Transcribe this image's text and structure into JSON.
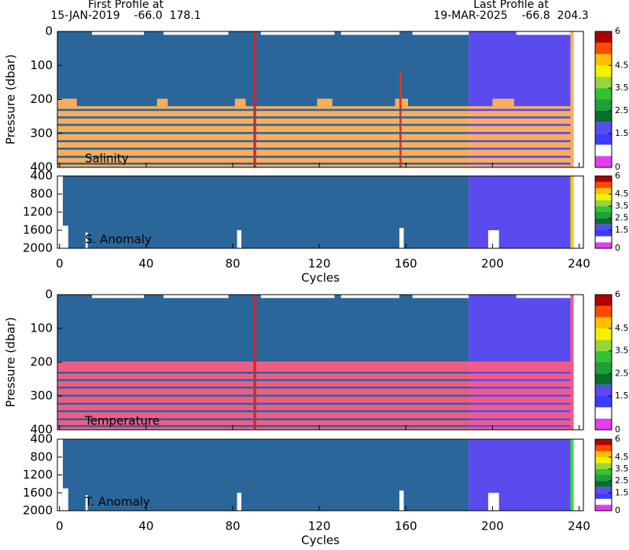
{
  "header": {
    "first_title": "First Profile at",
    "first_info": "15-JAN-2019    -66.0  178.1",
    "last_title": "Last Profile at",
    "last_info": "19-MAR-2025    -66.8  204.3"
  },
  "colorbar": {
    "levels": [
      0,
      0.5,
      1,
      1.5,
      2,
      2.5,
      3,
      3.5,
      4,
      4.5,
      5,
      5.5,
      6
    ],
    "colors": [
      "#e23ef0",
      "#ffffff",
      "#3c3cff",
      "#5a4bef",
      "#0b6e2e",
      "#1f9e3a",
      "#34c234",
      "#9ad53a",
      "#f2f200",
      "#ffc000",
      "#ff4a00",
      "#b00000"
    ],
    "ticks": [
      0,
      1.5,
      2.5,
      3.5,
      4.5,
      6
    ]
  },
  "chart_data": [
    {
      "type": "heatmap",
      "ylabel": "Pressure (dbar)",
      "label": "Salinity",
      "xlim": [
        -1,
        242
      ],
      "ylim": [
        0,
        400
      ],
      "xticks": [
        0,
        40,
        80,
        120,
        160,
        200,
        240
      ],
      "xticklabels": false,
      "yticks": [
        0,
        100,
        200,
        300,
        400
      ],
      "layers": [
        {
          "x": [
            -1,
            189
          ],
          "y": [
            0,
            400
          ],
          "color": "#2a6699"
        },
        {
          "x": [
            189,
            236
          ],
          "y": [
            0,
            400
          ],
          "color": "#5a4bef"
        },
        {
          "x": [
            -1,
            236
          ],
          "y": [
            220,
            400
          ],
          "color": "#f9ae5b"
        },
        {
          "x": [
            -1,
            8
          ],
          "y": [
            198,
            220
          ],
          "color": "#f9ae5b"
        },
        {
          "x": [
            45,
            50
          ],
          "y": [
            198,
            220
          ],
          "color": "#f9ae5b"
        },
        {
          "x": [
            81,
            86
          ],
          "y": [
            198,
            220
          ],
          "color": "#f9ae5b"
        },
        {
          "x": [
            119,
            126
          ],
          "y": [
            198,
            220
          ],
          "color": "#f9ae5b"
        },
        {
          "x": [
            155,
            161
          ],
          "y": [
            198,
            220
          ],
          "color": "#f9ae5b"
        },
        {
          "x": [
            200,
            210
          ],
          "y": [
            198,
            220
          ],
          "color": "#f9ae5b"
        },
        {
          "x": [
            15,
            39
          ],
          "y": [
            0,
            10
          ],
          "color": "#ffffff"
        },
        {
          "x": [
            48,
            78
          ],
          "y": [
            0,
            10
          ],
          "color": "#ffffff"
        },
        {
          "x": [
            93,
            127
          ],
          "y": [
            0,
            10
          ],
          "color": "#ffffff"
        },
        {
          "x": [
            130,
            157
          ],
          "y": [
            0,
            10
          ],
          "color": "#ffffff"
        },
        {
          "x": [
            163,
            189
          ],
          "y": [
            0,
            10
          ],
          "color": "#ffffff"
        },
        {
          "x": [
            211,
            236
          ],
          "y": [
            0,
            10
          ],
          "color": "#ffffff"
        },
        {
          "x": [
            236,
            237.5
          ],
          "y": [
            0,
            400
          ],
          "color": "#f9ae5b"
        },
        {
          "x": [
            240.5,
            242
          ],
          "y": [
            0,
            400
          ],
          "color": "#ffffff"
        },
        {
          "x": [
            89.6,
            90.8
          ],
          "y": [
            0,
            400
          ],
          "color": "#e02020"
        },
        {
          "x": [
            157,
            158
          ],
          "y": [
            120,
            400
          ],
          "color": "#e83020"
        }
      ],
      "stripes": [
        [
          228,
          234
        ],
        [
          250,
          256
        ],
        [
          272,
          278
        ],
        [
          296,
          302
        ],
        [
          320,
          326
        ],
        [
          342,
          348
        ],
        [
          366,
          372
        ],
        [
          386,
          392
        ]
      ],
      "stripe_segments": [
        {
          "x": [
            -1,
            189
          ],
          "color": "#2a6699"
        },
        {
          "x": [
            189,
            236
          ],
          "color": "#5a4bef"
        }
      ]
    },
    {
      "type": "heatmap",
      "label": "S. Anomaly",
      "xlabel": "Cycles",
      "xlim": [
        -1,
        242
      ],
      "ylim": [
        400,
        2000
      ],
      "xticks": [
        0,
        40,
        80,
        120,
        160,
        200,
        240
      ],
      "xticklabels": true,
      "yticks": [
        400,
        800,
        1200,
        1600,
        2000
      ],
      "layers": [
        {
          "x": [
            -1,
            189
          ],
          "y": [
            400,
            2000
          ],
          "color": "#2a6699"
        },
        {
          "x": [
            189,
            236
          ],
          "y": [
            400,
            2000
          ],
          "color": "#5a4bef"
        },
        {
          "x": [
            -1,
            1.5
          ],
          "y": [
            400,
            2000
          ],
          "color": "#ffffff"
        },
        {
          "x": [
            1.5,
            4
          ],
          "y": [
            1500,
            2000
          ],
          "color": "#ffffff"
        },
        {
          "x": [
            12,
            13
          ],
          "y": [
            1650,
            2000
          ],
          "color": "#ffffff"
        },
        {
          "x": [
            82,
            84
          ],
          "y": [
            1600,
            2000
          ],
          "color": "#ffffff"
        },
        {
          "x": [
            157,
            159
          ],
          "y": [
            1550,
            2000
          ],
          "color": "#ffffff"
        },
        {
          "x": [
            198,
            203
          ],
          "y": [
            1600,
            2000
          ],
          "color": "#ffffff"
        },
        {
          "x": [
            236,
            237.5
          ],
          "y": [
            400,
            2000
          ],
          "color": "#f0d000"
        },
        {
          "x": [
            240.5,
            242
          ],
          "y": [
            400,
            2000
          ],
          "color": "#ffffff"
        }
      ]
    },
    {
      "type": "heatmap",
      "ylabel": "Pressure (dbar)",
      "label": "Temperature",
      "xlim": [
        -1,
        242
      ],
      "ylim": [
        0,
        400
      ],
      "xticks": [
        0,
        40,
        80,
        120,
        160,
        200,
        240
      ],
      "xticklabels": false,
      "yticks": [
        0,
        100,
        200,
        300,
        400
      ],
      "layers": [
        {
          "x": [
            -1,
            189
          ],
          "y": [
            0,
            400
          ],
          "color": "#2a6699"
        },
        {
          "x": [
            189,
            236
          ],
          "y": [
            0,
            400
          ],
          "color": "#5a4bef"
        },
        {
          "x": [
            -1,
            236
          ],
          "y": [
            220,
            400
          ],
          "color": "#f25c84"
        },
        {
          "x": [
            -1,
            236
          ],
          "y": [
            198,
            220
          ],
          "color": "#f25c84"
        },
        {
          "x": [
            15,
            39
          ],
          "y": [
            0,
            10
          ],
          "color": "#ffffff"
        },
        {
          "x": [
            48,
            78
          ],
          "y": [
            0,
            10
          ],
          "color": "#ffffff"
        },
        {
          "x": [
            93,
            127
          ],
          "y": [
            0,
            10
          ],
          "color": "#ffffff"
        },
        {
          "x": [
            130,
            157
          ],
          "y": [
            0,
            10
          ],
          "color": "#ffffff"
        },
        {
          "x": [
            163,
            189
          ],
          "y": [
            0,
            10
          ],
          "color": "#ffffff"
        },
        {
          "x": [
            211,
            236
          ],
          "y": [
            0,
            10
          ],
          "color": "#ffffff"
        },
        {
          "x": [
            236,
            237.5
          ],
          "y": [
            0,
            400
          ],
          "color": "#f25c84"
        },
        {
          "x": [
            240.5,
            242
          ],
          "y": [
            0,
            400
          ],
          "color": "#ffffff"
        },
        {
          "x": [
            89.6,
            90.8
          ],
          "y": [
            0,
            400
          ],
          "color": "#e02020"
        }
      ],
      "stripes": [
        [
          228,
          234
        ],
        [
          250,
          256
        ],
        [
          272,
          278
        ],
        [
          296,
          302
        ],
        [
          320,
          326
        ],
        [
          342,
          348
        ],
        [
          366,
          372
        ],
        [
          386,
          392
        ]
      ],
      "stripe_segments": [
        {
          "x": [
            -1,
            189
          ],
          "color": "#2a6699"
        },
        {
          "x": [
            189,
            236
          ],
          "color": "#5a4bef"
        }
      ]
    },
    {
      "type": "heatmap",
      "label": "T. Anomaly",
      "xlabel": "Cycles",
      "xlim": [
        -1,
        242
      ],
      "ylim": [
        400,
        2000
      ],
      "xticks": [
        0,
        40,
        80,
        120,
        160,
        200,
        240
      ],
      "xticklabels": true,
      "yticks": [
        400,
        800,
        1200,
        1600,
        2000
      ],
      "layers": [
        {
          "x": [
            -1,
            189
          ],
          "y": [
            400,
            2000
          ],
          "color": "#2a6699"
        },
        {
          "x": [
            189,
            236
          ],
          "y": [
            400,
            2000
          ],
          "color": "#5a4bef"
        },
        {
          "x": [
            -1,
            1.5
          ],
          "y": [
            400,
            2000
          ],
          "color": "#ffffff"
        },
        {
          "x": [
            1.5,
            4
          ],
          "y": [
            1500,
            2000
          ],
          "color": "#ffffff"
        },
        {
          "x": [
            12,
            13
          ],
          "y": [
            1650,
            2000
          ],
          "color": "#ffffff"
        },
        {
          "x": [
            82,
            84
          ],
          "y": [
            1600,
            2000
          ],
          "color": "#ffffff"
        },
        {
          "x": [
            157,
            159
          ],
          "y": [
            1550,
            2000
          ],
          "color": "#ffffff"
        },
        {
          "x": [
            198,
            203
          ],
          "y": [
            1600,
            2000
          ],
          "color": "#ffffff"
        },
        {
          "x": [
            236,
            237.5
          ],
          "y": [
            400,
            2000
          ],
          "color": "#33dd33"
        },
        {
          "x": [
            240.5,
            242
          ],
          "y": [
            400,
            2000
          ],
          "color": "#ffffff"
        }
      ]
    }
  ]
}
